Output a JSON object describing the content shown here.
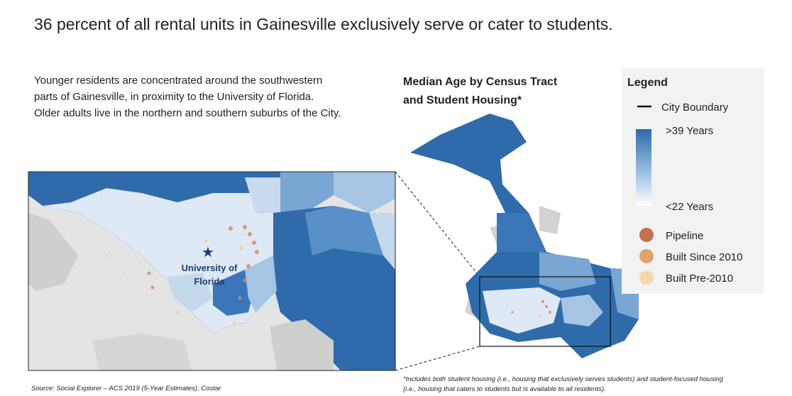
{
  "title": "36 percent of all rental units in Gainesville exclusively serve or cater to students.",
  "description": [
    "Younger residents are concentrated around the southwestern",
    "parts of Gainesville, in proximity to the University of Florida.",
    "Older adults live in the northern and southern suburbs of the City."
  ],
  "map_title": [
    "Median Age by Census Tract",
    "and Student Housing*"
  ],
  "inset_label": [
    "University of",
    "Florida"
  ],
  "legend": {
    "title": "Legend",
    "boundary": "City Boundary",
    "gradient_high": ">39 Years",
    "gradient_low": "<22 Years",
    "points": [
      "Pipeline",
      "Built Since 2010",
      "Built Pre-2010"
    ]
  },
  "footnote": [
    "*Includes both student housing (i.e., housing that exclusively serves students) and student-focused housing",
    "(i.e., housing that caters to students but is available to all residents)."
  ],
  "source": "Source: Social Explorer – ACS 2019 (5-Year Estimates), Costar"
}
